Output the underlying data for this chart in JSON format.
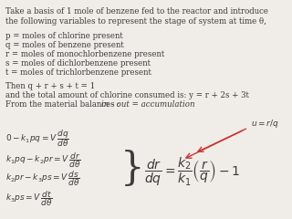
{
  "bg_color": "#f0ede8",
  "text_color": "#3a3a3a",
  "title_lines": [
    "Take a basis of 1 mole of benzene fed to the reactor and introduce",
    "the following variables to represent the stage of system at time θ,"
  ],
  "variables": [
    "p = moles of chlorine present",
    "q = moles of benzene present",
    "r = moles of monochlorbenzene present",
    "s = moles of dichlorbenzene present",
    "t = moles of trichlorbenzene present"
  ],
  "then_lines": [
    "Then q + r + s + t = 1",
    "and the total amount of chlorine consumed is: y = r + 2s + 3t",
    "From the material balances : in - out = accumulation"
  ],
  "arrow_color": "#cc3333",
  "eq_left": [
    "$0 - k_1 pq = V\\,\\dfrac{dq}{d\\theta}$",
    "$k_1 pq - k_2 pr = V\\,\\dfrac{dr}{d\\theta}$",
    "$k_2 pr - k_3 ps = V\\,\\dfrac{ds}{d\\theta}$",
    "$k_3 ps = V\\,\\dfrac{dt}{d\\theta}$"
  ],
  "eq_right": "$\\dfrac{dr}{dq} = \\dfrac{k_2}{k_1}\\left(\\dfrac{r}{q}\\right) - 1$",
  "u_label": "$u = r/q$"
}
